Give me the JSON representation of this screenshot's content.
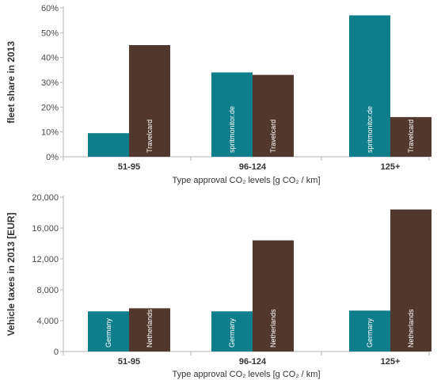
{
  "chart_data": [
    {
      "type": "bar",
      "categories": [
        "51-95",
        "96-124",
        "125+"
      ],
      "series": [
        {
          "name": "spritmonitor.de",
          "values": [
            9.5,
            34,
            57
          ]
        },
        {
          "name": "Travelcard",
          "values": [
            45,
            33,
            16
          ]
        }
      ],
      "bar_labels": [
        [
          "",
          "spritmonitor.de",
          "spritmonitor.de"
        ],
        [
          "Travelcard",
          "Travelcard",
          "Travelcard"
        ]
      ],
      "ylabel": "fleet share in 2013",
      "xlabel": "Type approval CO₂ levels [g CO₂ / km]",
      "ylim": [
        0,
        60
      ],
      "yticks": [
        0,
        10,
        20,
        30,
        40,
        50,
        60
      ],
      "ytick_labels": [
        "0%",
        "10%",
        "20%",
        "30%",
        "40%",
        "50%",
        "60%"
      ],
      "grid": false
    },
    {
      "type": "bar",
      "categories": [
        "51-95",
        "96-124",
        "125+"
      ],
      "series": [
        {
          "name": "Germany",
          "values": [
            5200,
            5200,
            5300
          ]
        },
        {
          "name": "Netherlands",
          "values": [
            5600,
            14400,
            18400
          ]
        }
      ],
      "bar_labels": [
        [
          "Germany",
          "Germany",
          "Germany"
        ],
        [
          "Netherlands",
          "Netherlands",
          "Netherlands"
        ]
      ],
      "ylabel": "Vehicle taxes in 2013 [EUR]",
      "xlabel": "Type approval CO₂ levels [g CO₂ / km]",
      "ylim": [
        0,
        20000
      ],
      "yticks": [
        0,
        4000,
        8000,
        12000,
        16000,
        20000
      ],
      "ytick_labels": [
        "0",
        "4,000",
        "8,000",
        "12,000",
        "16,000",
        "20,000"
      ],
      "grid": false
    }
  ],
  "colors": {
    "teal": "#0e7d8c",
    "brown": "#52382c",
    "axis": "#b5b5b5"
  }
}
